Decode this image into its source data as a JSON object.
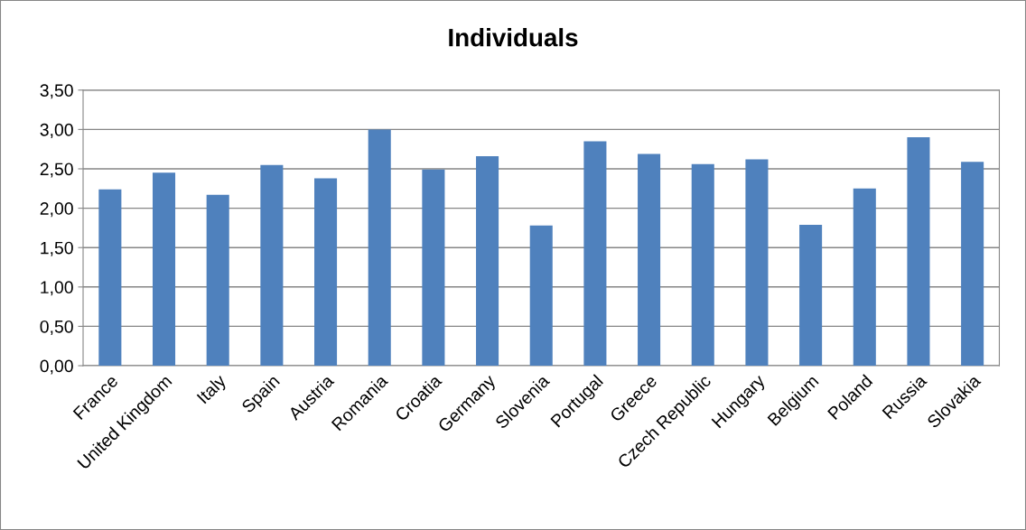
{
  "chart_data": {
    "type": "bar",
    "title": "Individuals",
    "categories": [
      "France",
      "United Kingdom",
      "Italy",
      "Spain",
      "Austria",
      "Romania",
      "Croatia",
      "Germany",
      "Slovenia",
      "Portugal",
      "Greece",
      "Czech Republic",
      "Hungary",
      "Belgium",
      "Poland",
      "Russia",
      "Slovakia"
    ],
    "values": [
      2.24,
      2.45,
      2.17,
      2.55,
      2.38,
      3.0,
      2.49,
      2.66,
      1.78,
      2.85,
      2.69,
      2.56,
      2.62,
      1.79,
      2.25,
      2.9,
      2.59
    ],
    "color": "#4f81bd",
    "ylim": [
      0,
      3.5
    ],
    "yticks": [
      {
        "value": 0,
        "label": "0,00"
      },
      {
        "value": 0.5,
        "label": "0,50"
      },
      {
        "value": 1,
        "label": "1,00"
      },
      {
        "value": 1.5,
        "label": "1,50"
      },
      {
        "value": 2,
        "label": "2,00"
      },
      {
        "value": 2.5,
        "label": "2,50"
      },
      {
        "value": 3,
        "label": "3,00"
      },
      {
        "value": 3.5,
        "label": "3,50"
      }
    ],
    "grid": "y"
  }
}
